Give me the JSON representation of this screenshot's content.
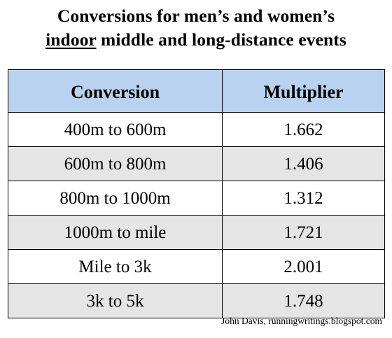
{
  "title": {
    "line1": "Conversions for men’s and women’s",
    "line2_emphasis": "indoor",
    "line2_rest": " middle and long-distance events"
  },
  "table": {
    "headers": [
      "Conversion",
      "Multiplier"
    ],
    "rows": [
      {
        "conversion": "400m to 600m",
        "multiplier": "1.662"
      },
      {
        "conversion": "600m to 800m",
        "multiplier": "1.406"
      },
      {
        "conversion": "800m to 1000m",
        "multiplier": "1.312"
      },
      {
        "conversion": "1000m to mile",
        "multiplier": "1.721"
      },
      {
        "conversion": "Mile to 3k",
        "multiplier": "2.001"
      },
      {
        "conversion": "3k to 5k",
        "multiplier": "1.748"
      }
    ]
  },
  "credit": "John Davis, runningwritings.blogspot.com",
  "colors": {
    "header_bg": "#b8d2f0",
    "shaded_row_bg": "#e5e5e5",
    "plain_row_bg": "#ffffff"
  }
}
